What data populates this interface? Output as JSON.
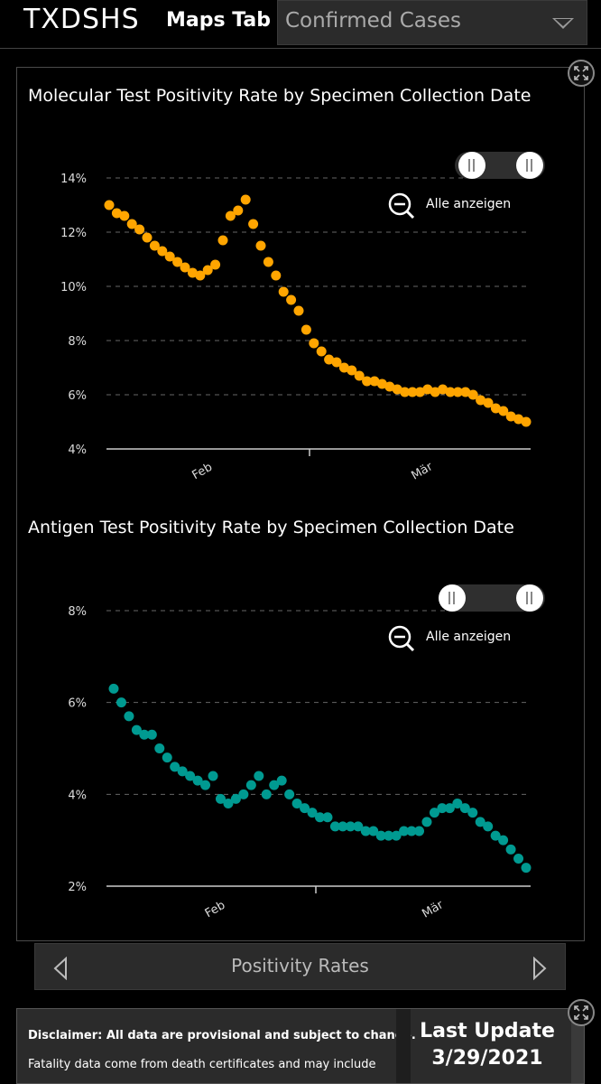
{
  "header": {
    "app_title": "TXDSHS",
    "tab_label": "Maps Tab",
    "dropdown_value": "Confirmed Cases"
  },
  "colors": {
    "molecular": "#ffa500",
    "antigen": "#009a91",
    "background": "#000000",
    "panel_border": "#4a4a4a"
  },
  "icons": {
    "expand": "expand-icon",
    "zoom_out": "zoom-out-icon",
    "prev": "chevron-left-icon",
    "next": "chevron-right-icon"
  },
  "zoom_reset_label": "Alle anzeigen",
  "chart_data": [
    {
      "type": "scatter",
      "title": "Molecular Test Positivity Rate by Specimen Collection Date",
      "xlabel": "",
      "ylabel": "",
      "yticks": [
        "4%",
        "6%",
        "8%",
        "10%",
        "12%",
        "14%"
      ],
      "ytick_values": [
        4,
        6,
        8,
        10,
        12,
        14
      ],
      "ylim": [
        4,
        14
      ],
      "xticks": [
        "Feb",
        "Mär"
      ],
      "xtick_index": [
        12.5,
        41.5
      ],
      "grid": true,
      "color": "#ffa500",
      "values": [
        13.0,
        12.7,
        12.6,
        12.3,
        12.1,
        11.8,
        11.5,
        11.3,
        11.1,
        10.9,
        10.7,
        10.5,
        10.4,
        10.6,
        10.8,
        11.7,
        12.6,
        12.8,
        13.2,
        12.3,
        11.5,
        10.9,
        10.4,
        9.8,
        9.5,
        9.1,
        8.4,
        7.9,
        7.6,
        7.3,
        7.2,
        7.0,
        6.9,
        6.7,
        6.5,
        6.5,
        6.4,
        6.3,
        6.2,
        6.1,
        6.1,
        6.1,
        6.2,
        6.1,
        6.2,
        6.1,
        6.1,
        6.1,
        6.0,
        5.8,
        5.7,
        5.5,
        5.4,
        5.2,
        5.1,
        5.0
      ]
    },
    {
      "type": "scatter",
      "title": "Antigen Test Positivity Rate by Specimen Collection Date",
      "xlabel": "",
      "ylabel": "",
      "yticks": [
        "2%",
        "4%",
        "6%",
        "8%"
      ],
      "ytick_values": [
        2,
        4,
        6,
        8
      ],
      "ylim": [
        2,
        8
      ],
      "xticks": [
        "Feb",
        "Mär"
      ],
      "xtick_index": [
        13.5,
        42
      ],
      "grid": true,
      "color": "#009a91",
      "values": [
        6.3,
        6.0,
        5.7,
        5.4,
        5.3,
        5.3,
        5.0,
        4.8,
        4.6,
        4.5,
        4.4,
        4.3,
        4.2,
        4.4,
        3.9,
        3.8,
        3.9,
        4.0,
        4.2,
        4.4,
        4.0,
        4.2,
        4.3,
        4.0,
        3.8,
        3.7,
        3.6,
        3.5,
        3.5,
        3.3,
        3.3,
        3.3,
        3.3,
        3.2,
        3.2,
        3.1,
        3.1,
        3.1,
        3.2,
        3.2,
        3.2,
        3.4,
        3.6,
        3.7,
        3.7,
        3.8,
        3.7,
        3.6,
        3.4,
        3.3,
        3.1,
        3.0,
        2.8,
        2.6,
        2.4
      ]
    }
  ],
  "nav": {
    "label": "Positivity Rates"
  },
  "footer": {
    "disclaimer": "Disclaimer: All data are provisional and subject to change.",
    "fatality_note": "Fatality data come from death certificates and may include",
    "last_update_label": "Last Update",
    "last_update_date": "3/29/2021"
  }
}
